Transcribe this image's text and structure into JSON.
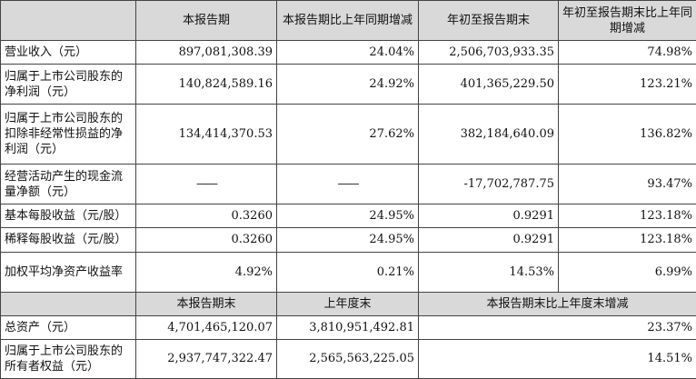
{
  "header1": [
    "",
    "本报告期",
    "本报告期比上年同期增减",
    "年初至报告期末",
    "年初至报告期末比上年同期增减"
  ],
  "rows": [
    {
      "label": "营业收入（元）",
      "values": [
        "897,081,308.39",
        "24.04%",
        "2,506,703,933.35",
        "74.98%"
      ]
    },
    {
      "label": "归属于上市公司股东的净利润（元）",
      "values": [
        "140,824,589.16",
        "24.92%",
        "401,365,229.50",
        "123.21%"
      ]
    },
    {
      "label": "归属于上市公司股东的扣除非经常性损益的净利润（元）",
      "values": [
        "134,414,370.53",
        "27.62%",
        "382,184,640.09",
        "136.82%"
      ]
    },
    {
      "label": "经营活动产生的现金流量净额（元）",
      "values": [
        "——",
        "——",
        "-17,702,787.75",
        "93.47%"
      ]
    },
    {
      "label": "基本每股收益（元/股）",
      "values": [
        "0.3260",
        "24.95%",
        "0.9291",
        "123.18%"
      ]
    },
    {
      "label": "稀释每股收益（元/股）",
      "values": [
        "0.3260",
        "24.95%",
        "0.9291",
        "123.18%"
      ]
    },
    {
      "label": "加权平均净资产收益率",
      "values": [
        "4.92%",
        "0.21%",
        "14.53%",
        "6.99%"
      ]
    }
  ],
  "header2": [
    "",
    "本报告期末",
    "上年度末",
    "本报告期末比上年度末增减"
  ],
  "rows2": [
    {
      "label": "总资产（元）",
      "values": [
        "4,701,465,120.07",
        "3,810,951,492.81",
        "23.37%"
      ]
    },
    {
      "label": "归属于上市公司股东的所有者权益（元）",
      "values": [
        "2,937,747,322.47",
        "2,565,563,225.05",
        "14.51%"
      ]
    }
  ]
}
